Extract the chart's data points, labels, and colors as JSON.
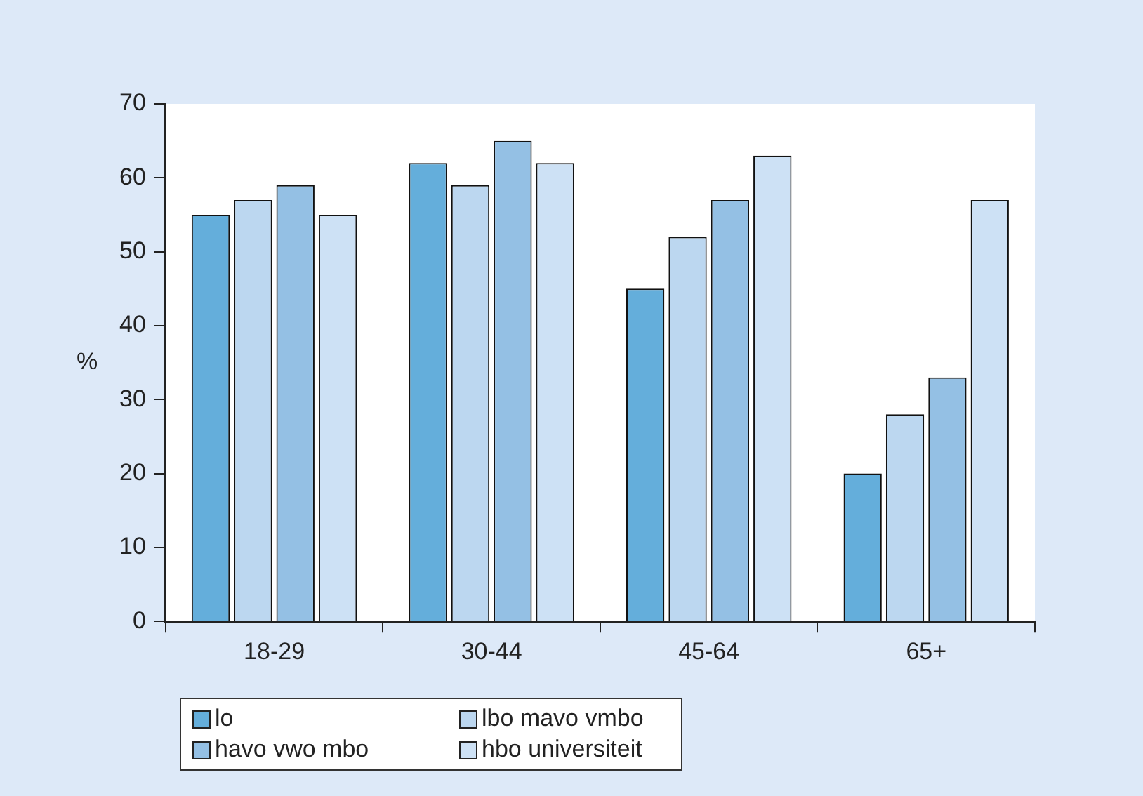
{
  "chart_data": {
    "type": "bar",
    "ylabel": "%",
    "categories": [
      "18-29",
      "30-44",
      "45-64",
      "65+"
    ],
    "series": [
      {
        "name": "lo",
        "color": "#64aedb",
        "values": [
          55,
          62,
          45,
          20
        ]
      },
      {
        "name": "lbo mavo vmbo",
        "color": "#bcd7f0",
        "values": [
          57,
          59,
          52,
          28
        ]
      },
      {
        "name": "havo vwo mbo",
        "color": "#94c0e4",
        "values": [
          59,
          65,
          57,
          33
        ]
      },
      {
        "name": "hbo universiteit",
        "color": "#cde1f5",
        "values": [
          55,
          62,
          63,
          57
        ]
      }
    ],
    "ylim": [
      0,
      70
    ],
    "yticks": [
      0,
      10,
      20,
      30,
      40,
      50,
      60,
      70
    ],
    "grid": false,
    "legend": "bottom left"
  }
}
